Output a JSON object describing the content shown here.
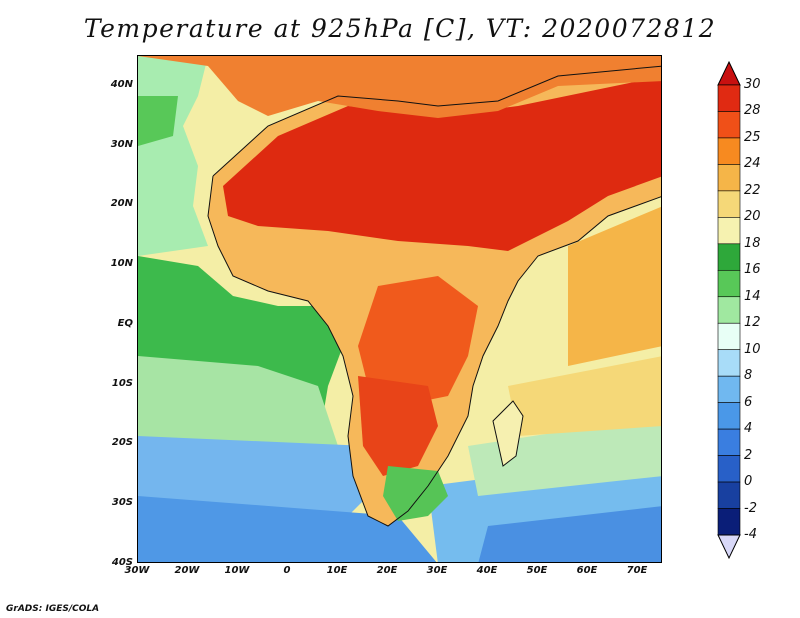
{
  "title": "Temperature at 925hPa [C], VT: 2020072812",
  "credit": "GrADS: IGES/COLA",
  "map": {
    "lat_labels": [
      "40N",
      "30N",
      "20N",
      "10N",
      "EQ",
      "10S",
      "20S",
      "30S",
      "40S"
    ],
    "lon_labels": [
      "30W",
      "20W",
      "10W",
      "0",
      "10E",
      "20E",
      "30E",
      "40E",
      "50E",
      "60E",
      "70E"
    ],
    "lat_values": [
      40,
      30,
      20,
      10,
      0,
      -10,
      -20,
      -30,
      -40
    ],
    "lon_values": [
      -30,
      -20,
      -10,
      0,
      10,
      20,
      30,
      40,
      50,
      60,
      70
    ]
  },
  "colorbar": {
    "labels": [
      "30",
      "28",
      "25",
      "24",
      "22",
      "20",
      "18",
      "16",
      "14",
      "12",
      "10",
      "8",
      "6",
      "4",
      "2",
      "0",
      "-2",
      "-4"
    ],
    "colors": [
      "#c01808",
      "#e02a12",
      "#f05018",
      "#f78a20",
      "#f5b548",
      "#f5d878",
      "#f6f2b0",
      "#2ea83a",
      "#58c858",
      "#a0e8a0",
      "#e8fff6",
      "#a8dcf8",
      "#70b8f0",
      "#4a98e8",
      "#3a7ee0",
      "#2860c8",
      "#1840a0",
      "#0a1e78"
    ],
    "top_arrow_color": "#c81010",
    "bottom_arrow_color": "#d8d8f8"
  }
}
